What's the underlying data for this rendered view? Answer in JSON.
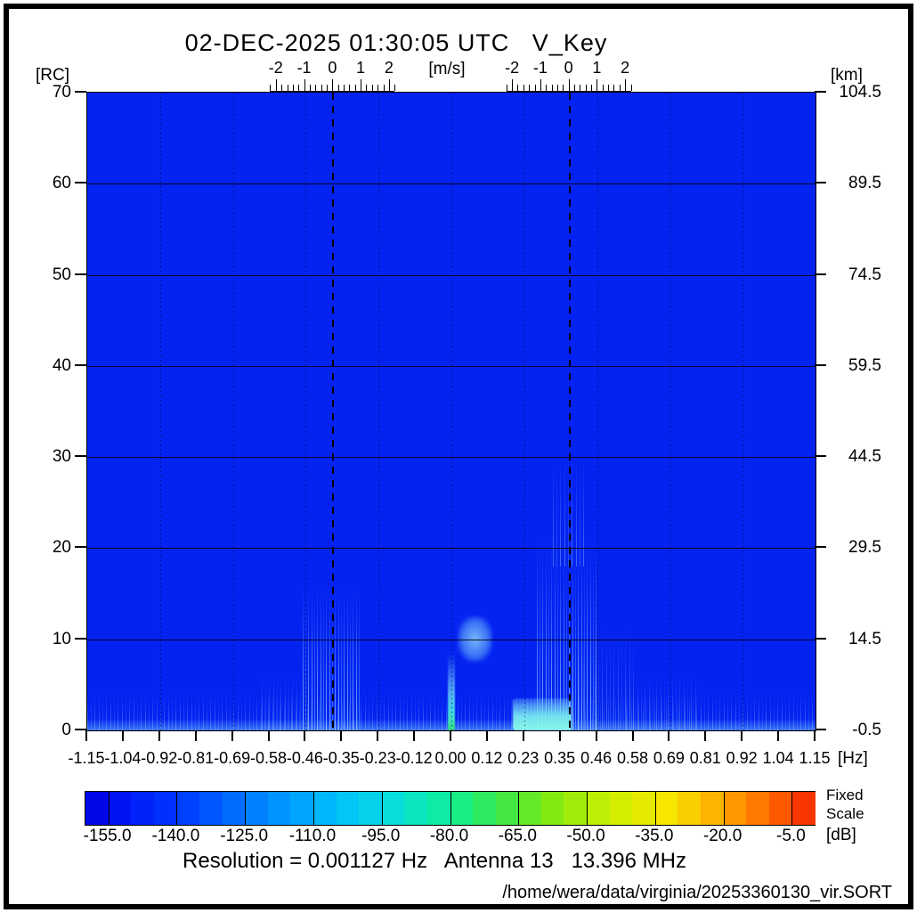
{
  "footer": {
    "info": "Resolution = 0.001127 Hz   Antenna 13   13.396 MHz",
    "file_path": "/home/wera/data/virginia/20253360130_vir.SORT"
  },
  "chart_data": {
    "type": "heatmap",
    "title": "02-DEC-2025 01:30:05 UTC   V_Key",
    "xlabel": "[Hz]",
    "ylabel_left": "[RC]",
    "ylabel_right": "[km]",
    "xlim": [
      -1.15,
      1.15
    ],
    "ylim_rc": [
      0,
      70
    ],
    "ylim_km": [
      -0.5,
      104.5
    ],
    "x_ticks": [
      "-1.15",
      "-1.04",
      "-0.92",
      "-0.81",
      "-0.69",
      "-0.58",
      "-0.46",
      "-0.35",
      "-0.23",
      "-0.12",
      "0.00",
      "0.12",
      "0.23",
      "0.35",
      "0.46",
      "0.58",
      "0.69",
      "0.81",
      "0.92",
      "1.04",
      "1.15"
    ],
    "rc_ticks": [
      "70",
      "60",
      "50",
      "40",
      "30",
      "20",
      "10",
      "0"
    ],
    "km_ticks": [
      "104.5",
      "89.5",
      "74.5",
      "59.5",
      "44.5",
      "29.5",
      "14.5",
      "-0.5"
    ],
    "grid_hz": [
      -0.92,
      -0.69,
      -0.46,
      -0.23,
      0,
      0.23,
      0.46,
      0.69,
      0.92
    ],
    "grid_rc": [
      10,
      20,
      30,
      40,
      50,
      60
    ],
    "bragg_lines_hz": [
      -0.373,
      0.373
    ],
    "velocity_ruler": {
      "unit": "[m/s]",
      "labels": [
        "-2",
        "-1",
        "0",
        "1",
        "2"
      ],
      "hz_per_mps": 0.0893,
      "span_mps": 2.2,
      "minor_step_mps": 0.2
    },
    "colorbar": {
      "unit": "[dB]",
      "scale_line1": "Fixed",
      "scale_line2": "Scale",
      "colormap": "jet",
      "min_db": -160,
      "max_db": 0,
      "segment_db": 5,
      "tick_values": [
        -155,
        -140,
        -125,
        -110,
        -95,
        -80,
        -65,
        -50,
        -35,
        -20,
        -5
      ],
      "tick_labels": [
        "-155.0",
        "-140.0",
        "-125.0",
        "-110.0",
        "-95.0",
        "-80.0",
        "-65.0",
        "-50.0",
        "-35.0",
        "-20.0",
        "-5.0"
      ]
    },
    "background_db": -155,
    "features": [
      {
        "name": "noise-floor-band",
        "kind": "streaks-faint",
        "hz": [
          -1.15,
          1.15
        ],
        "rc": [
          0,
          4
        ],
        "db": -140
      },
      {
        "name": "bottom-edge-glow",
        "kind": "glow-band",
        "hz": [
          -1.15,
          1.15
        ],
        "rc": [
          0,
          1.3
        ],
        "db": -135
      },
      {
        "name": "negative-tail",
        "kind": "streaks-faint",
        "hz": [
          -0.6,
          -0.47
        ],
        "rc": [
          0,
          6
        ],
        "db": -138
      },
      {
        "name": "negative-bragg-echo",
        "kind": "streaks",
        "hz": [
          -0.47,
          -0.29
        ],
        "rc": [
          0,
          16
        ],
        "db": -120
      },
      {
        "name": "zero-doppler-spike",
        "kind": "bright-line",
        "hz": [
          -0.012,
          0.012
        ],
        "rc": [
          0,
          8.5
        ],
        "db": -90
      },
      {
        "name": "ship-echo-blob",
        "kind": "blob",
        "hz": [
          0.02,
          0.13
        ],
        "rc": [
          7.5,
          12.5
        ],
        "db": -125
      },
      {
        "name": "positive-bragg-plume",
        "kind": "streaks",
        "hz": [
          0.27,
          0.46
        ],
        "rc": [
          0,
          21
        ],
        "db": -115
      },
      {
        "name": "positive-bragg-upper-wisp",
        "kind": "streaks-faint",
        "hz": [
          0.32,
          0.43
        ],
        "rc": [
          18,
          30
        ],
        "db": -130
      },
      {
        "name": "positive-bragg-bright-base",
        "kind": "bright-patch",
        "hz": [
          0.195,
          0.38
        ],
        "rc": [
          0,
          3.5
        ],
        "db": -100
      },
      {
        "name": "positive-tail-near",
        "kind": "streaks-faint",
        "hz": [
          0.38,
          0.58
        ],
        "rc": [
          0,
          11
        ],
        "db": -132
      },
      {
        "name": "positive-tail-far",
        "kind": "streaks-faint",
        "hz": [
          0.55,
          0.78
        ],
        "rc": [
          0,
          6
        ],
        "db": -136
      }
    ]
  }
}
